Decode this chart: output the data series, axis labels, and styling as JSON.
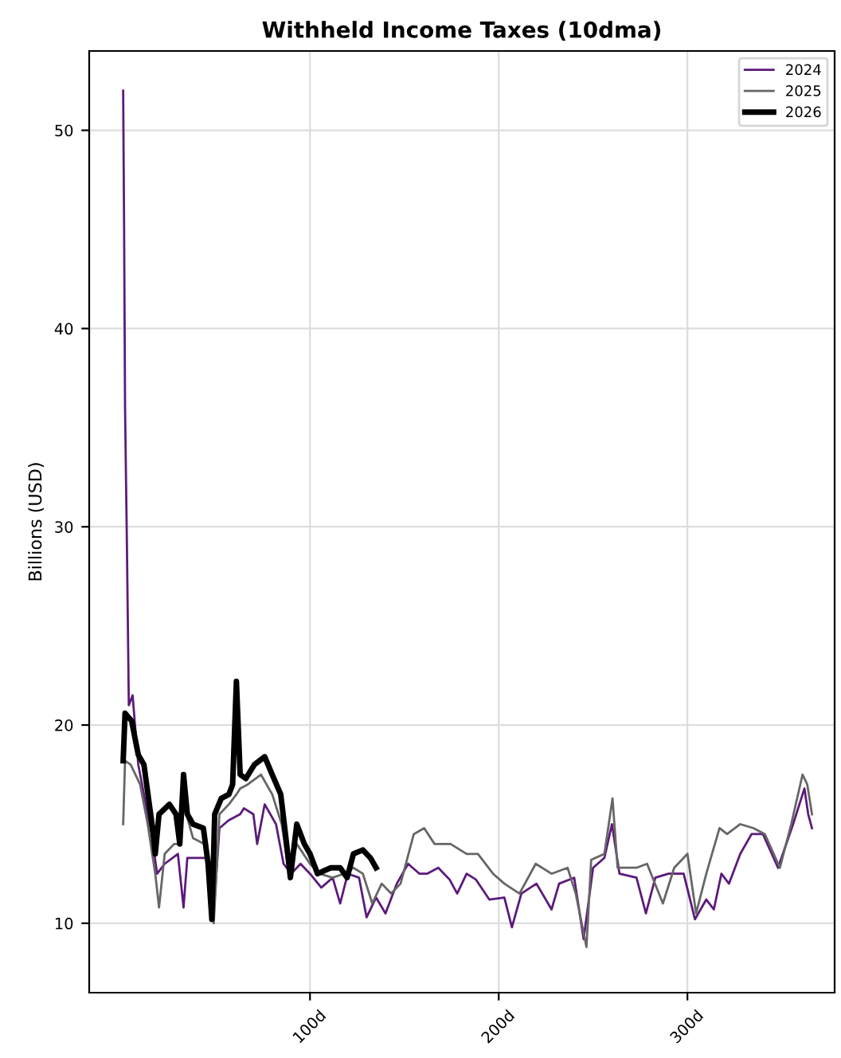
{
  "chart_data": {
    "type": "line",
    "title": "Withheld Income Taxes (10dma)",
    "ylabel": "Billions (USD)",
    "xlim": [
      -17,
      378
    ],
    "xticks": [
      {
        "value": 100,
        "label": "100d"
      },
      {
        "value": 200,
        "label": "200d"
      },
      {
        "value": 300,
        "label": "300d"
      }
    ],
    "ylim": [
      6.5,
      54
    ],
    "yticks": [
      10,
      20,
      30,
      40,
      50
    ],
    "grid": true,
    "legend": "top right",
    "line_style": "solid",
    "marker": "none",
    "series": [
      {
        "name": "2024",
        "color": "#5c1a7a",
        "x": [
          1,
          1.5,
          2,
          3,
          4,
          6,
          9,
          13,
          16,
          19,
          23,
          30,
          33,
          35,
          45,
          49,
          52,
          57,
          63,
          65,
          70,
          72,
          76,
          82,
          86,
          90,
          95,
          100,
          106,
          112,
          116,
          120,
          126,
          130,
          135,
          140,
          146,
          152,
          158,
          162,
          168,
          174,
          178,
          183,
          188,
          195,
          203,
          207,
          212,
          220,
          228,
          232,
          240,
          245,
          250,
          256,
          260,
          264,
          273,
          278,
          283,
          290,
          298,
          304,
          310,
          314,
          318,
          322,
          328,
          334,
          340,
          348,
          356,
          362,
          364,
          366
        ],
        "values": [
          52,
          45,
          36,
          29,
          21,
          21.5,
          18,
          16,
          14.5,
          12.5,
          13,
          13.5,
          10.8,
          13.3,
          13.3,
          10.5,
          14.8,
          15.2,
          15.5,
          15.8,
          15.5,
          14,
          16,
          15,
          13,
          12.5,
          13,
          12.5,
          11.8,
          12.3,
          11,
          12.5,
          12.3,
          10.3,
          11.3,
          10.5,
          12,
          13,
          12.5,
          12.5,
          12.8,
          12.2,
          11.5,
          12.5,
          12.2,
          11.2,
          11.3,
          9.8,
          11.5,
          12,
          10.7,
          12,
          12.3,
          9.2,
          12.8,
          13.3,
          15,
          12.5,
          12.3,
          10.5,
          12.3,
          12.5,
          12.5,
          10.2,
          11.2,
          10.7,
          12.5,
          12,
          13.5,
          14.5,
          14.5,
          12.8,
          15,
          16.8,
          15.5,
          14.8
        ]
      },
      {
        "name": "2025",
        "color": "#666666",
        "x": [
          1,
          2,
          5,
          10,
          14,
          18,
          20,
          23,
          28,
          30,
          33,
          38,
          44,
          47,
          49,
          52,
          57,
          61,
          63,
          67,
          74,
          80,
          85,
          89,
          93,
          100,
          105,
          112,
          118,
          123,
          128,
          133,
          138,
          143,
          148,
          155,
          160.5,
          166,
          174.5,
          183,
          189,
          197,
          203,
          211,
          219.6,
          228,
          236.5,
          240.8,
          246.5,
          249,
          256,
          260.3,
          263,
          273,
          278.6,
          287,
          293,
          300,
          304.6,
          310,
          317,
          321,
          328,
          335,
          341,
          349,
          355,
          361,
          363.5,
          366
        ],
        "values": [
          15,
          18.2,
          18,
          17,
          15,
          12.5,
          10.8,
          13.5,
          14,
          14,
          16,
          14.3,
          14,
          13,
          10,
          15.5,
          16,
          16.5,
          16.8,
          17,
          17.5,
          16.5,
          15,
          12.5,
          14,
          13,
          12.5,
          12.3,
          12.5,
          12.8,
          12.5,
          11,
          12,
          11.5,
          12,
          14.5,
          14.8,
          14,
          14,
          13.5,
          13.5,
          12.5,
          12,
          11.5,
          13,
          12.5,
          12.8,
          11.5,
          8.8,
          13.2,
          13.5,
          16.3,
          12.8,
          12.8,
          13,
          11,
          12.8,
          13.5,
          10.5,
          12.5,
          14.8,
          14.5,
          15,
          14.8,
          14.5,
          12.8,
          15,
          17.5,
          17,
          15.5
        ]
      },
      {
        "name": "2026",
        "color": "#000000",
        "x": [
          1,
          2,
          5.5,
          9,
          12,
          17,
          18,
          20,
          25.5,
          29,
          31,
          33,
          35,
          38,
          43.5,
          46,
          48,
          49.5,
          53,
          57,
          59,
          61,
          63,
          66,
          70.5,
          76,
          80,
          84.5,
          87,
          89.6,
          93,
          97,
          100,
          104,
          111,
          116,
          119.7,
          123,
          128,
          132,
          135
        ],
        "values": [
          18.2,
          20.6,
          20.2,
          18.5,
          18,
          14.5,
          13.5,
          15.5,
          16,
          15.5,
          14,
          17.5,
          15.5,
          15,
          14.8,
          13,
          10.2,
          15.5,
          16.3,
          16.5,
          17,
          22.2,
          17.5,
          17.3,
          18,
          18.4,
          17.5,
          16.5,
          14.5,
          12.3,
          15,
          14,
          13.5,
          12.5,
          12.8,
          12.8,
          12.3,
          13.5,
          13.7,
          13.3,
          12.8
        ]
      }
    ]
  }
}
